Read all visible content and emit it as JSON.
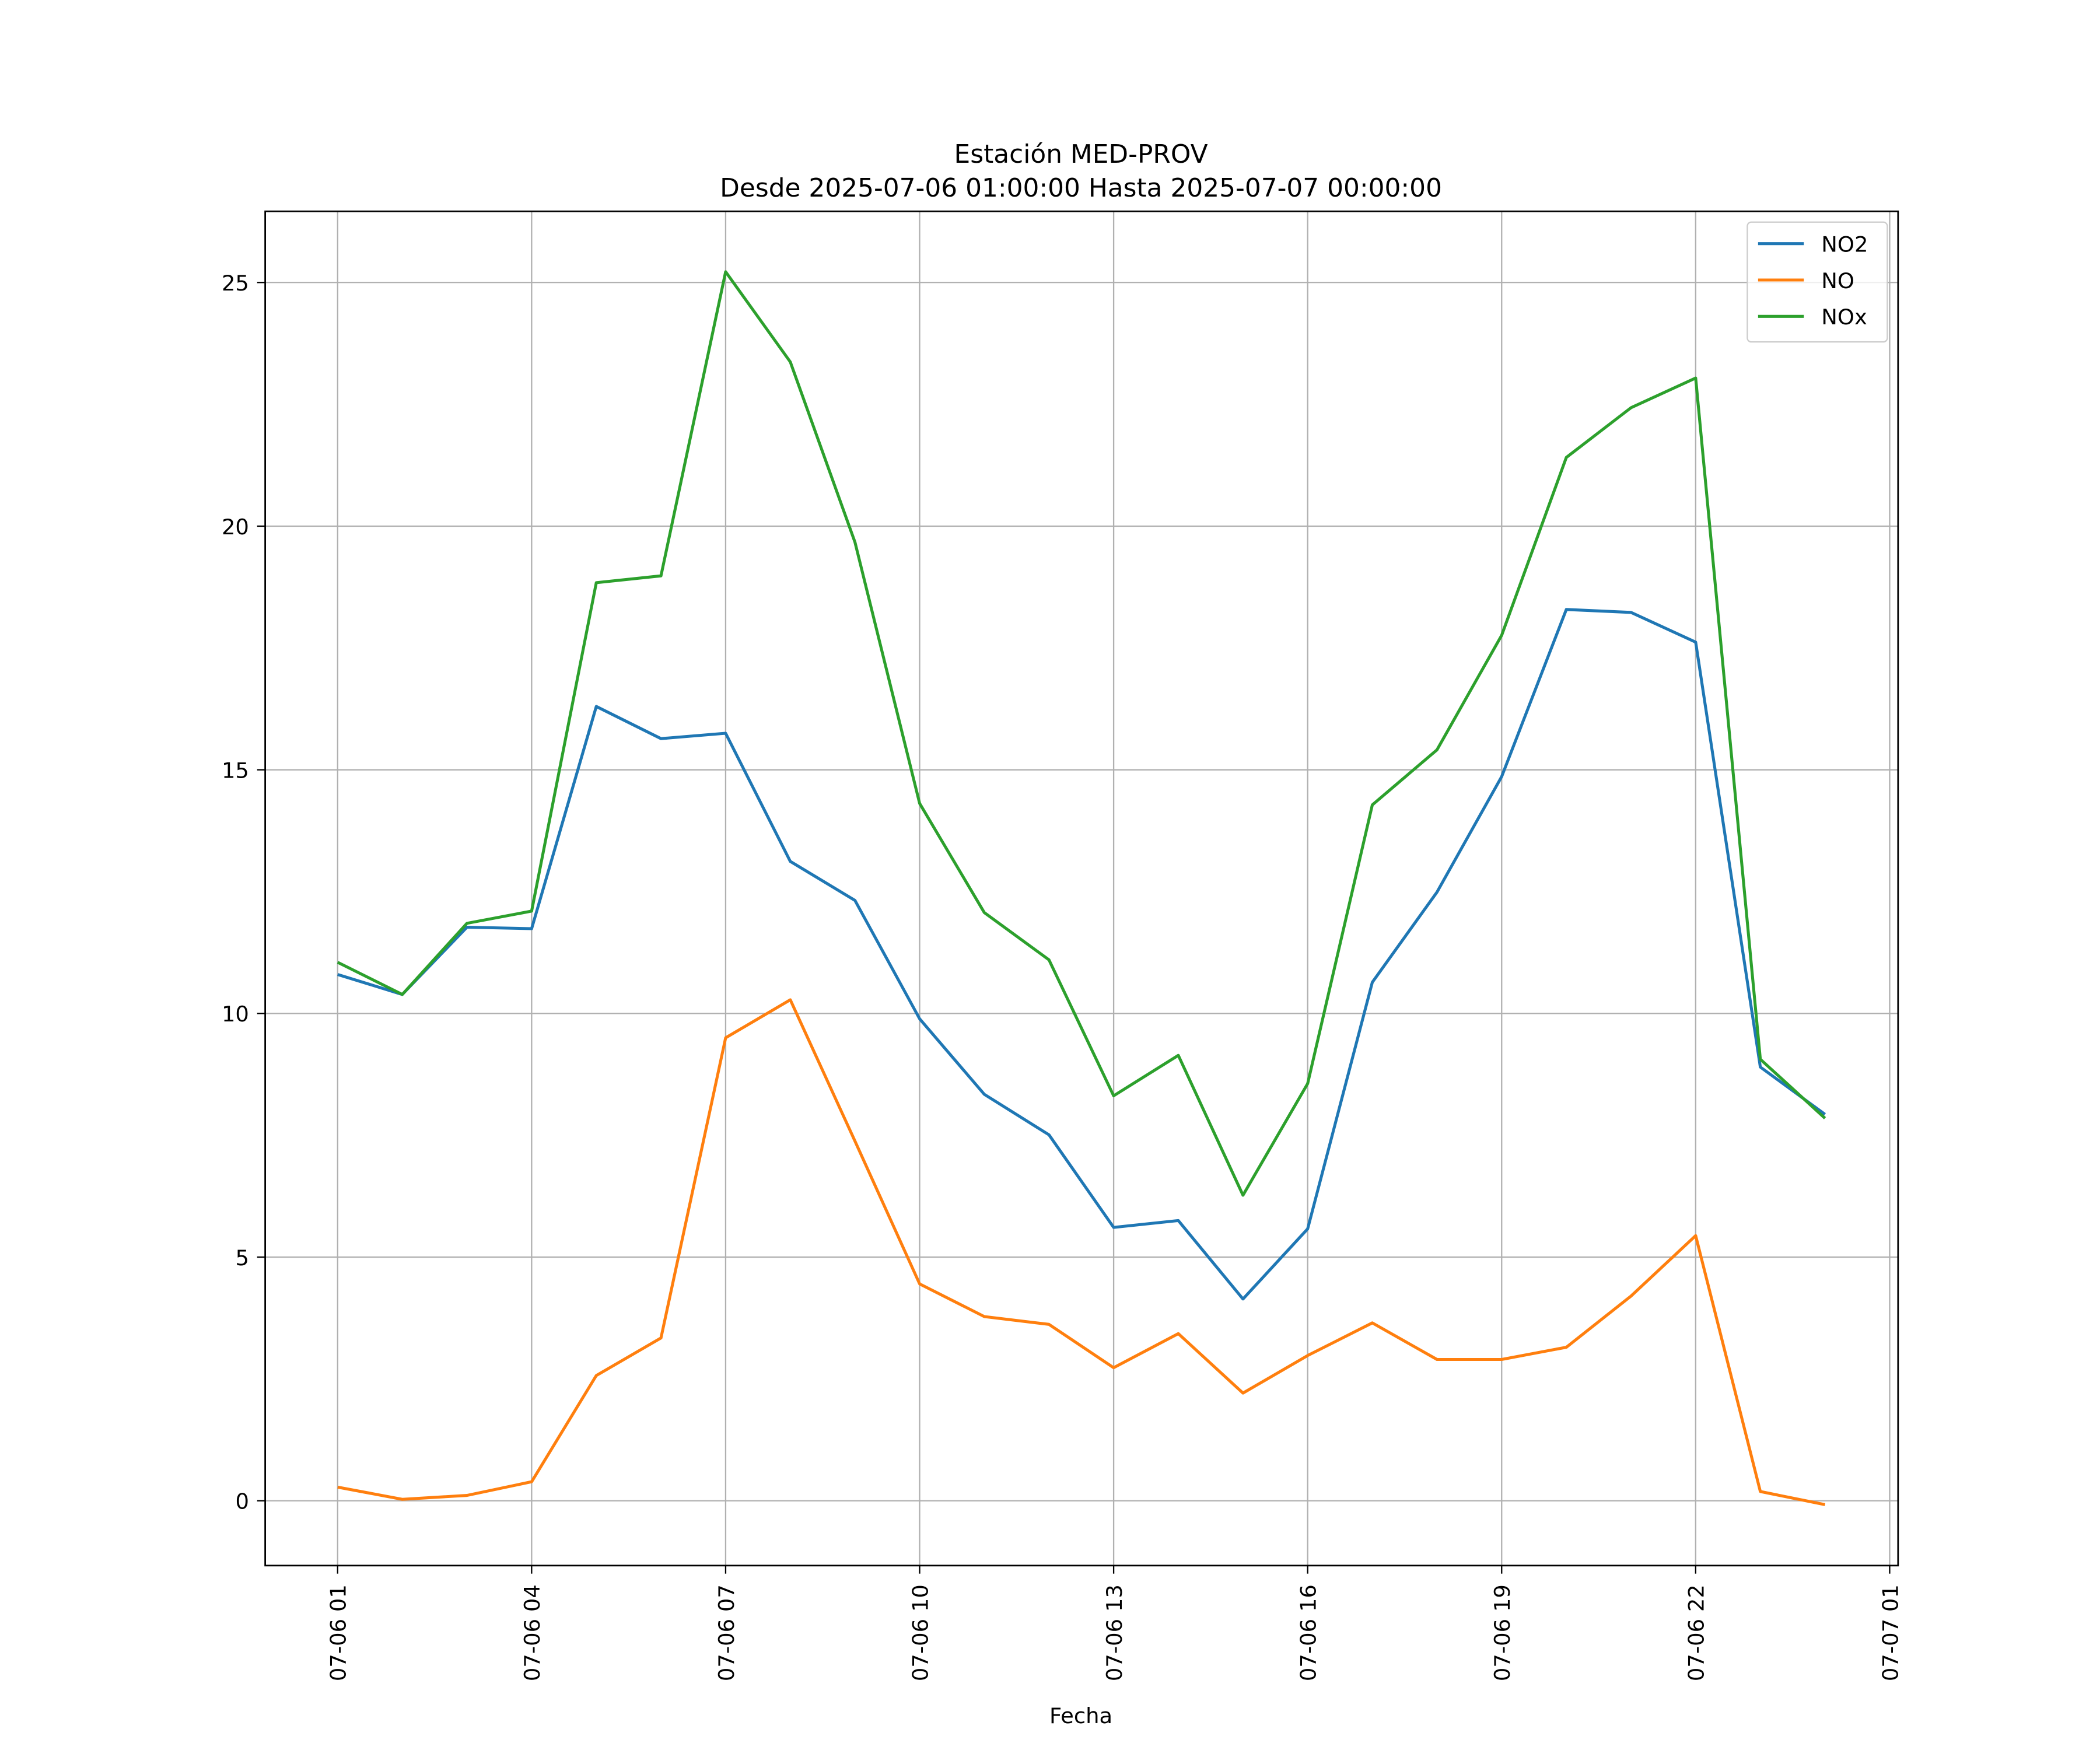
{
  "chart_data": {
    "type": "line",
    "title": "Estación MED-PROV",
    "subtitle": "Desde 2025-07-06 01:00:00 Hasta 2025-07-07 00:00:00",
    "xlabel": "Fecha",
    "ylabel": "",
    "x_hours": [
      1,
      2,
      3,
      4,
      5,
      6,
      7,
      8,
      9,
      10,
      11,
      12,
      13,
      14,
      15,
      16,
      17,
      18,
      19,
      20,
      21,
      22,
      23,
      24
    ],
    "xlim_hours": [
      -0.12,
      25.13
    ],
    "ylim": [
      -1.33,
      26.46
    ],
    "grid": true,
    "legend_position": "top-right",
    "x_ticks": [
      {
        "hour": 1,
        "label": "07-06 01"
      },
      {
        "hour": 4,
        "label": "07-06 04"
      },
      {
        "hour": 7,
        "label": "07-06 07"
      },
      {
        "hour": 10,
        "label": "07-06 10"
      },
      {
        "hour": 13,
        "label": "07-06 13"
      },
      {
        "hour": 16,
        "label": "07-06 16"
      },
      {
        "hour": 19,
        "label": "07-06 19"
      },
      {
        "hour": 22,
        "label": "07-06 22"
      },
      {
        "hour": 25,
        "label": "07-07 01"
      }
    ],
    "y_ticks": [
      0,
      5,
      10,
      15,
      20,
      25
    ],
    "series": [
      {
        "name": "NO2",
        "color": "#1f77b4",
        "values": [
          10.8,
          10.39,
          11.77,
          11.74,
          16.3,
          15.64,
          15.75,
          13.12,
          12.32,
          9.89,
          8.34,
          7.51,
          5.61,
          5.75,
          4.14,
          5.58,
          10.64,
          12.49,
          14.86,
          18.29,
          18.23,
          17.62,
          8.9,
          7.93
        ]
      },
      {
        "name": "NO",
        "color": "#ff7f0e",
        "values": [
          0.28,
          0.03,
          0.11,
          0.39,
          2.57,
          3.34,
          9.5,
          10.28,
          7.38,
          4.45,
          3.78,
          3.62,
          2.73,
          3.43,
          2.21,
          2.98,
          3.65,
          2.9,
          2.9,
          3.15,
          4.2,
          5.44,
          0.19,
          -0.08
        ]
      },
      {
        "name": "NOx",
        "color": "#2ca02c",
        "values": [
          11.05,
          10.39,
          11.85,
          12.1,
          18.84,
          18.98,
          25.22,
          23.37,
          19.67,
          14.31,
          12.07,
          11.1,
          8.31,
          9.14,
          6.27,
          8.56,
          14.28,
          15.41,
          17.76,
          21.41,
          22.43,
          23.04,
          9.06,
          7.85
        ]
      }
    ]
  }
}
